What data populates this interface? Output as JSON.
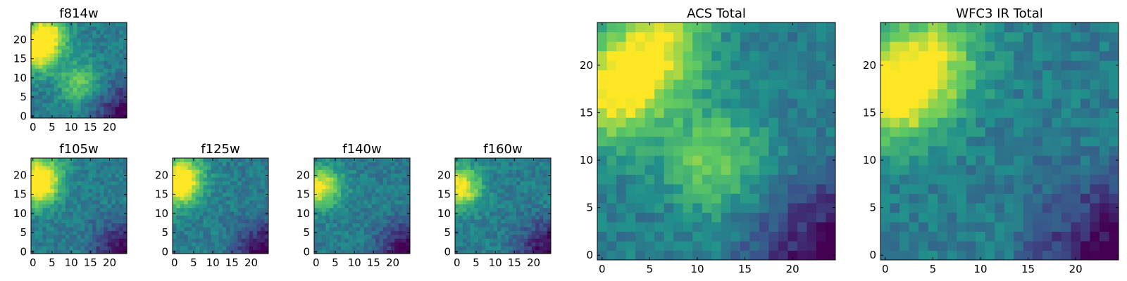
{
  "chart_data": [
    {
      "type": "heatmap",
      "title": "f814w",
      "colormap": "viridis",
      "xlim": [
        0,
        24
      ],
      "ylim": [
        0,
        24
      ],
      "xticks": [
        "0",
        "5",
        "10",
        "15",
        "20"
      ],
      "yticks": [
        "0",
        "5",
        "10",
        "15",
        "20"
      ],
      "peaks": [
        [
          1,
          17,
          1.0
        ],
        [
          4,
          22,
          0.85
        ],
        [
          12,
          9,
          0.55
        ]
      ],
      "low_region": "bottom-right"
    },
    {
      "type": "heatmap",
      "title": "f105w",
      "colormap": "viridis",
      "xlim": [
        0,
        24
      ],
      "ylim": [
        0,
        24
      ],
      "xticks": [
        "0",
        "5",
        "10",
        "15",
        "20"
      ],
      "yticks": [
        "0",
        "5",
        "10",
        "15",
        "20"
      ],
      "peaks": [
        [
          1,
          17,
          1.0
        ],
        [
          3,
          21,
          0.6
        ]
      ],
      "low_region": "bottom-right"
    },
    {
      "type": "heatmap",
      "title": "f125w",
      "colormap": "viridis",
      "xlim": [
        0,
        24
      ],
      "ylim": [
        0,
        24
      ],
      "xticks": [
        "0",
        "5",
        "10",
        "15",
        "20"
      ],
      "yticks": [
        "0",
        "5",
        "10",
        "15",
        "20"
      ],
      "peaks": [
        [
          1,
          17,
          1.0
        ],
        [
          3,
          21,
          0.55
        ]
      ],
      "low_region": "bottom-right"
    },
    {
      "type": "heatmap",
      "title": "f140w",
      "colormap": "viridis",
      "xlim": [
        0,
        24
      ],
      "ylim": [
        0,
        24
      ],
      "xticks": [
        "0",
        "5",
        "10",
        "15",
        "20"
      ],
      "yticks": [
        "0",
        "5",
        "10",
        "15",
        "20"
      ],
      "peaks": [
        [
          1,
          17,
          1.0
        ]
      ],
      "low_region": "bottom-right"
    },
    {
      "type": "heatmap",
      "title": "f160w",
      "colormap": "viridis",
      "xlim": [
        0,
        24
      ],
      "ylim": [
        0,
        24
      ],
      "xticks": [
        "0",
        "5",
        "10",
        "15",
        "20"
      ],
      "yticks": [
        "0",
        "5",
        "10",
        "15",
        "20"
      ],
      "peaks": [
        [
          1,
          17,
          1.0
        ]
      ],
      "low_region": "bottom-right"
    },
    {
      "type": "heatmap",
      "title": "ACS Total",
      "colormap": "viridis",
      "xlim": [
        0,
        24
      ],
      "ylim": [
        0,
        24
      ],
      "xticks": [
        "0",
        "5",
        "10",
        "15",
        "20"
      ],
      "yticks": [
        "0",
        "5",
        "10",
        "15",
        "20"
      ],
      "peaks": [
        [
          1,
          17,
          1.0
        ],
        [
          6,
          22,
          0.85
        ],
        [
          12,
          10,
          0.6
        ]
      ],
      "low_region": "bottom-right"
    },
    {
      "type": "heatmap",
      "title": "WFC3 IR Total",
      "colormap": "viridis",
      "xlim": [
        0,
        24
      ],
      "ylim": [
        0,
        24
      ],
      "xticks": [
        "0",
        "5",
        "10",
        "15",
        "20"
      ],
      "yticks": [
        "0",
        "5",
        "10",
        "15",
        "20"
      ],
      "peaks": [
        [
          1,
          17,
          1.0
        ],
        [
          5,
          21,
          0.65
        ]
      ],
      "low_region": "bottom-right"
    }
  ]
}
